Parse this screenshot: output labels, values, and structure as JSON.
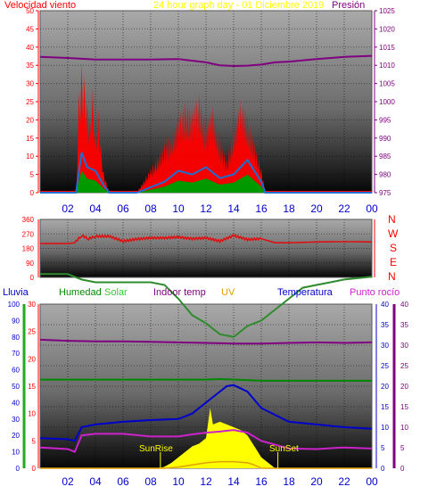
{
  "header": {
    "left_title": "Velocidad viento",
    "center_title": "24 hour graph day - 01 Diciembre 2019",
    "right_title": "Presión"
  },
  "colors": {
    "wind": "#ff0000",
    "wind_avg": "#1e6fd0",
    "wind_green": "#009900",
    "pressure": "#800080",
    "direction": "#dd1111",
    "humidity": "#2e8b2e",
    "solar": "#ffff00",
    "indoor": "#008800",
    "uv": "#e0a000",
    "temperature": "#0000cc",
    "dew": "#cc22cc",
    "rain": "#22aa22"
  },
  "chart_data": [
    {
      "type": "line",
      "name": "wind-pressure",
      "x_ticks": [
        "02",
        "04",
        "06",
        "08",
        "10",
        "12",
        "14",
        "16",
        "18",
        "20",
        "22",
        "00"
      ],
      "y_left_ticks": [
        "0",
        "5",
        "10",
        "15",
        "20",
        "25",
        "30",
        "35",
        "40",
        "45",
        "50"
      ],
      "y_left_range": [
        0,
        50
      ],
      "y_right_ticks": [
        "975",
        "980",
        "985",
        "990",
        "995",
        "1000",
        "1005",
        "1010",
        "1015",
        "1020",
        "1025"
      ],
      "y_right_range": [
        975,
        1025
      ],
      "series": [
        {
          "key": "pressure",
          "x": [
            0,
            2,
            4,
            6,
            8,
            10,
            12,
            13,
            14,
            15,
            16,
            17,
            18,
            20,
            22,
            24
          ],
          "y": [
            1012.3,
            1012,
            1011.6,
            1011.6,
            1011.6,
            1011.7,
            1010.8,
            1010,
            1009.8,
            1009.9,
            1010.2,
            1010.8,
            1011,
            1011.7,
            1012.3,
            1012.6
          ]
        },
        {
          "key": "wind_gust",
          "x": [
            0,
            2.6,
            2.8,
            3,
            3.2,
            3.4,
            3.6,
            3.8,
            4,
            4.2,
            4.4,
            4.6,
            5,
            7,
            9,
            10,
            10.5,
            11,
            11.5,
            12,
            12.5,
            13,
            13.5,
            14,
            14.5,
            15,
            15.5,
            16,
            16.3,
            18,
            24
          ],
          "y": [
            0,
            0,
            24,
            31,
            28,
            22,
            18,
            25,
            15,
            20,
            12,
            5,
            0,
            0,
            12,
            18,
            22,
            20,
            24,
            16,
            21,
            13,
            8,
            16,
            22,
            19,
            12,
            6,
            0,
            0,
            0
          ]
        },
        {
          "key": "wind_avg",
          "x": [
            0,
            2.6,
            3,
            3.4,
            4,
            4.6,
            5,
            7,
            9,
            10,
            11,
            12,
            13,
            14,
            15,
            16,
            16.3,
            24
          ],
          "y": [
            0,
            0,
            11,
            7,
            6,
            2,
            0,
            0,
            3,
            6,
            5,
            7,
            4,
            5,
            9,
            3,
            0,
            0
          ]
        }
      ]
    },
    {
      "type": "line",
      "name": "wind-direction",
      "y_ticks": [
        "0",
        "90",
        "180",
        "270",
        "360"
      ],
      "y_range": [
        0,
        360
      ],
      "compass_labels": [
        "N",
        "W",
        "S",
        "E",
        "N"
      ],
      "series": [
        {
          "key": "direction",
          "x": [
            0,
            2,
            2.5,
            3,
            3.5,
            4,
            5,
            6,
            7,
            8,
            9,
            10,
            11,
            12,
            13,
            14,
            15,
            16,
            17,
            18,
            20,
            22,
            24
          ],
          "y": [
            210,
            210,
            215,
            260,
            240,
            255,
            255,
            225,
            238,
            245,
            245,
            250,
            240,
            245,
            225,
            260,
            235,
            240,
            215,
            215,
            220,
            222,
            220
          ]
        }
      ]
    },
    {
      "type": "line",
      "name": "temperature-humidity",
      "legend": [
        "Lluvia",
        "Humedad",
        "Solar",
        "Indoor temp",
        "UV",
        "Temperatura",
        "Punto rocío"
      ],
      "markers": [
        "SunRise",
        "SunSet"
      ],
      "y_rain_ticks": [
        "0",
        "10",
        "20",
        "30",
        "40",
        "50",
        "60",
        "70",
        "80",
        "90",
        "100"
      ],
      "y_left_ticks": [
        "0",
        "5",
        "10",
        "15",
        "20",
        "25",
        "30"
      ],
      "y_left_range": [
        0,
        30
      ],
      "y_right_ticks": [
        "0",
        "5",
        "10",
        "15",
        "20",
        "25",
        "30",
        "35",
        "40"
      ],
      "y_right_range": [
        0,
        40
      ],
      "series": [
        {
          "key": "humidity",
          "x": [
            0,
            2,
            3,
            4,
            6,
            7,
            8,
            9,
            10,
            11,
            12,
            13,
            14,
            15,
            16,
            17,
            18,
            19,
            20,
            21,
            22,
            24
          ],
          "y": [
            35.5,
            35.5,
            34.5,
            34,
            34,
            34,
            34,
            33.5,
            31,
            28,
            26.5,
            24.5,
            24,
            26,
            27,
            29,
            31,
            33,
            33.5,
            34,
            34.5,
            35
          ]
        },
        {
          "key": "dew_top",
          "x": [
            0,
            2,
            4,
            6,
            8,
            10,
            12,
            14,
            16,
            18,
            20,
            22,
            24
          ],
          "y": [
            23.5,
            23.3,
            23.2,
            23.2,
            23.1,
            23,
            22.9,
            22.8,
            22.8,
            22.9,
            23,
            22.9,
            23
          ]
        },
        {
          "key": "indoor",
          "x": [
            0,
            12,
            13,
            16,
            24
          ],
          "y": [
            16.2,
            16.2,
            16.3,
            16,
            16
          ]
        },
        {
          "key": "temperature",
          "x": [
            0,
            2,
            2.5,
            3,
            4,
            6,
            8,
            10,
            11,
            12,
            13,
            13.5,
            14,
            15,
            16,
            18,
            20,
            22,
            24
          ],
          "y": [
            5.5,
            5.3,
            5,
            7.5,
            8,
            8.5,
            8.8,
            9,
            10,
            12,
            14,
            15,
            15.2,
            14,
            11,
            8.5,
            8,
            7.5,
            7.2
          ]
        },
        {
          "key": "dew",
          "x": [
            0,
            2,
            2.5,
            3,
            4,
            6,
            8,
            10,
            11,
            12,
            13,
            14,
            15,
            16,
            18,
            20,
            22,
            24
          ],
          "y": [
            3.8,
            3.5,
            3,
            6,
            6.3,
            6.3,
            5.8,
            5.8,
            6.2,
            6.5,
            6.7,
            7,
            6.5,
            5,
            3.6,
            3.5,
            3.8,
            3.6
          ]
        },
        {
          "key": "solar",
          "x": [
            0,
            8.6,
            9,
            9.5,
            10,
            10.5,
            11,
            11.5,
            12,
            12.3,
            12.5,
            13,
            13.5,
            14,
            14.5,
            15,
            15.5,
            16,
            17,
            24
          ],
          "y": [
            0,
            0,
            0.3,
            1,
            2,
            3,
            4,
            4.5,
            5.5,
            11,
            8,
            8.5,
            8,
            7.5,
            7,
            6,
            4,
            2,
            0,
            0
          ]
        },
        {
          "key": "uv",
          "x": [
            0,
            9,
            10,
            11,
            12,
            13,
            14,
            15,
            15.5,
            16,
            24
          ],
          "y": [
            0,
            0,
            0.2,
            0.6,
            1,
            1.2,
            1.2,
            1,
            0.6,
            0,
            0
          ]
        }
      ]
    }
  ]
}
